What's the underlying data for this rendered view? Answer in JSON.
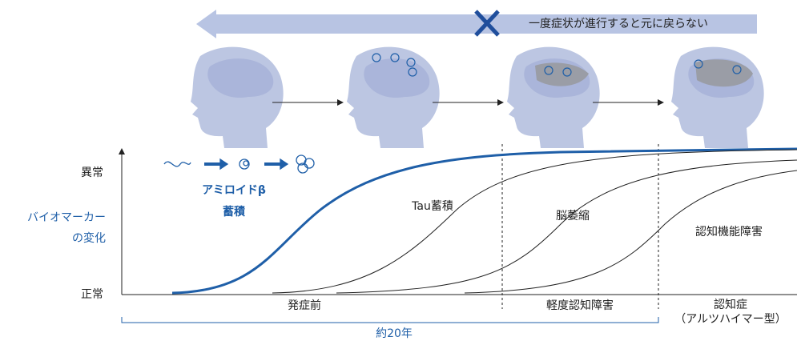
{
  "banner": {
    "note": "一度症状が進行すると元に戻らない"
  },
  "y_axis": {
    "top": "異常",
    "bottom": "正常",
    "label_lines": [
      "バイオマーカー",
      "の変化"
    ]
  },
  "amyloid": {
    "lines": [
      "アミロイドβ",
      "蓄積"
    ]
  },
  "curve_labels": [
    "Tau蓄積",
    "脳萎縮",
    "認知機能障害"
  ],
  "stages": [
    "発症前",
    "軽度認知障害",
    "認知症",
    "（アルツハイマー型）"
  ],
  "duration": "約20年"
}
